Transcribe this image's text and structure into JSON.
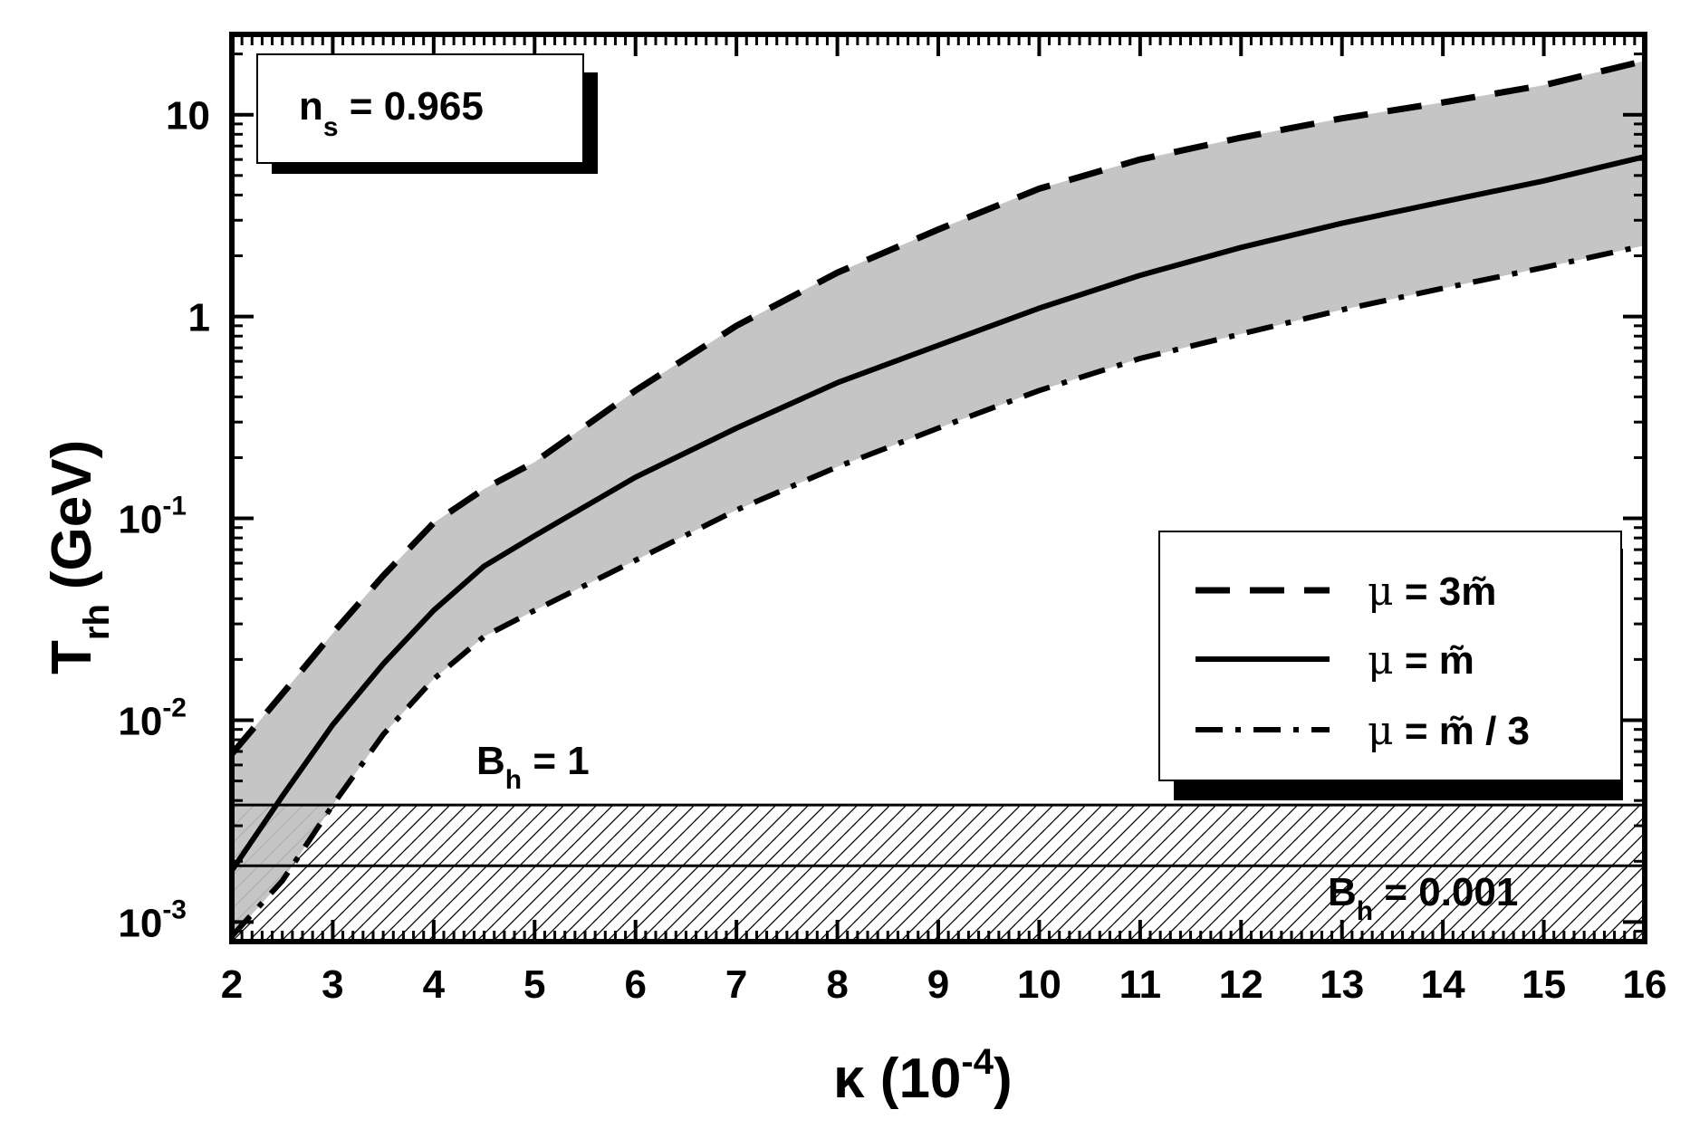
{
  "chart_data": {
    "type": "line",
    "xlabel": {
      "symbol": "κ",
      "main": " (10",
      "exp": "-4",
      "close": ")"
    },
    "ylabel": {
      "main": "T",
      "sub": "rh",
      "unit": "(GeV)"
    },
    "xlim": [
      2,
      16
    ],
    "ylim": [
      0.0008,
      25
    ],
    "y_scale": "log",
    "x_ticks": [
      "2",
      "3",
      "4",
      "5",
      "6",
      "7",
      "8",
      "9",
      "10",
      "11",
      "12",
      "13",
      "14",
      "15",
      "16"
    ],
    "y_ticks": [
      {
        "value": 0.001,
        "base": "10",
        "exp": "-3"
      },
      {
        "value": 0.01,
        "base": "10",
        "exp": "-2"
      },
      {
        "value": 0.1,
        "base": "10",
        "exp": "-1"
      },
      {
        "value": 1,
        "base": "1",
        "exp": ""
      },
      {
        "value": 10,
        "base": "10",
        "exp": ""
      }
    ],
    "series": [
      {
        "name": "μ = 3m̃",
        "style": "dashed",
        "x": [
          2,
          2.5,
          3,
          3.5,
          4,
          4.5,
          5,
          6,
          7,
          8,
          9,
          10,
          11,
          12,
          13,
          14,
          15,
          16
        ],
        "y": [
          0.0068,
          0.0135,
          0.027,
          0.052,
          0.095,
          0.14,
          0.19,
          0.43,
          0.9,
          1.65,
          2.7,
          4.3,
          6.0,
          7.7,
          9.6,
          11.5,
          14.0,
          18.5
        ]
      },
      {
        "name": "μ = m̃",
        "style": "solid",
        "x": [
          2,
          2.5,
          3,
          3.5,
          4,
          4.5,
          5,
          6,
          7,
          8,
          9,
          10,
          11,
          12,
          13,
          14,
          15,
          16
        ],
        "y": [
          0.0018,
          0.0042,
          0.0095,
          0.019,
          0.035,
          0.058,
          0.082,
          0.16,
          0.28,
          0.47,
          0.72,
          1.1,
          1.6,
          2.2,
          2.9,
          3.7,
          4.7,
          6.2
        ]
      },
      {
        "name": "μ = m̃ / 3",
        "style": "dashdot",
        "x": [
          2,
          2.5,
          3,
          3.5,
          4,
          4.5,
          5,
          6,
          7,
          8,
          9,
          10,
          11,
          12,
          13,
          14,
          15,
          16
        ],
        "y": [
          0.00085,
          0.0016,
          0.0038,
          0.0085,
          0.016,
          0.026,
          0.035,
          0.062,
          0.11,
          0.18,
          0.28,
          0.43,
          0.62,
          0.82,
          1.08,
          1.38,
          1.75,
          2.25
        ]
      }
    ],
    "hlines": [
      {
        "value": 0.0038,
        "label": {
          "main": "B",
          "sub": "h",
          "rest": " = 1"
        }
      },
      {
        "value": 0.0019,
        "label": {
          "main": "B",
          "sub": "h",
          "rest": " = 0.001"
        }
      }
    ],
    "annotation": {
      "main": "n",
      "sub": "s",
      "rest": " = 0.965"
    },
    "legend": {
      "position": "bottom-right",
      "entries": [
        {
          "mu": "μ",
          "text": " = 3m̃",
          "style": "dashed"
        },
        {
          "mu": "μ",
          "text": " = m̃",
          "style": "solid"
        },
        {
          "mu": "μ",
          "text": " = m̃ / 3",
          "style": "dashdot"
        }
      ]
    },
    "colors": {
      "band": "#c0c0c0",
      "line": "#000000",
      "hatch": "#000000",
      "background": "#ffffff"
    }
  }
}
